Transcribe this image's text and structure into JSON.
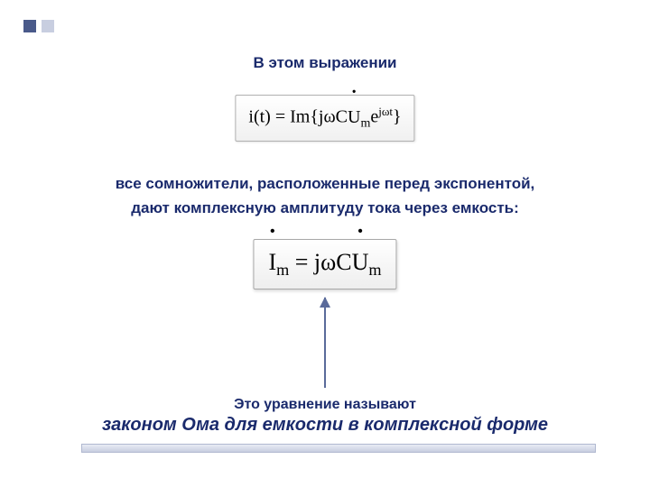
{
  "colors": {
    "text_primary": "#1a2a6c",
    "bullet_dark": "#4a5a8a",
    "bullet_light": "#c8cee0",
    "formula_border": "#b0b0b0",
    "arrow": "#5a6a9a"
  },
  "title": "В этом выражении",
  "formula1": {
    "lhs": "i(t)",
    "op": "= Im",
    "inner_prefix": "jωC",
    "inner_symbol": "U",
    "inner_sub": "m",
    "exp_base": "e",
    "exp_sup": "jωt"
  },
  "text_block": {
    "line1": "все сомножители, расположенные перед экспонентой,",
    "line2": "дают комплексную амплитуду тока через емкость:"
  },
  "formula2": {
    "lhs_symbol": "I",
    "lhs_sub": "m",
    "eq": " = jωC",
    "rhs_symbol": "U",
    "rhs_sub": "m"
  },
  "conclusion": {
    "line1": "Это уравнение называют",
    "line2": "законом Ома для емкости в комплексной форме"
  }
}
